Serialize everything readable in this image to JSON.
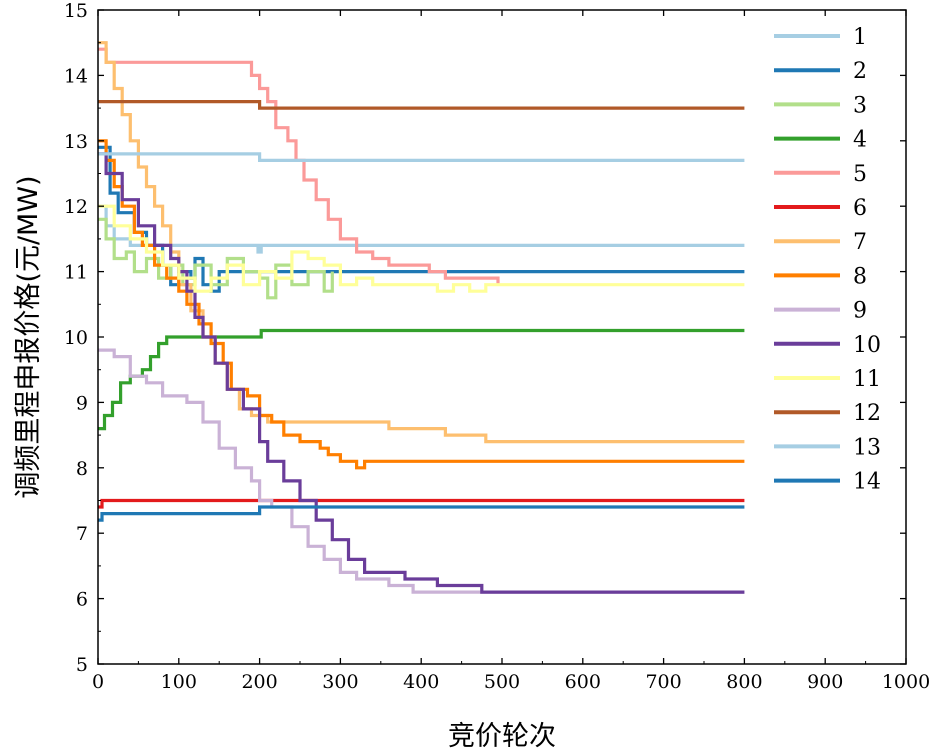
{
  "chart_data": {
    "type": "line",
    "title": "",
    "xlabel": "竞价轮次",
    "ylabel": "调频里程申报价格(元/MW)",
    "xlim": [
      0,
      1000
    ],
    "ylim": [
      5,
      15
    ],
    "xticks": [
      0,
      100,
      200,
      300,
      400,
      500,
      600,
      700,
      800,
      900,
      1000
    ],
    "yticks": [
      5,
      6,
      7,
      8,
      9,
      10,
      11,
      12,
      13,
      14,
      15
    ],
    "legend_position": "top-right",
    "grid": false,
    "series": [
      {
        "name": "1",
        "color": "#a6cee3",
        "points": [
          [
            0,
            12.0
          ],
          [
            10,
            11.7
          ],
          [
            20,
            11.5
          ],
          [
            40,
            11.4
          ],
          [
            100,
            11.4
          ],
          [
            195,
            11.4
          ],
          [
            198,
            11.3
          ],
          [
            202,
            11.4
          ],
          [
            800,
            11.4
          ]
        ]
      },
      {
        "name": "2",
        "color": "#1f78b4",
        "points": [
          [
            0,
            12.9
          ],
          [
            15,
            12.2
          ],
          [
            25,
            11.9
          ],
          [
            45,
            11.6
          ],
          [
            60,
            11.4
          ],
          [
            80,
            11.1
          ],
          [
            90,
            10.8
          ],
          [
            100,
            11.0
          ],
          [
            115,
            10.9
          ],
          [
            120,
            11.2
          ],
          [
            130,
            10.8
          ],
          [
            140,
            10.7
          ],
          [
            150,
            11.0
          ],
          [
            200,
            11.0
          ],
          [
            205,
            11.0
          ],
          [
            800,
            11.0
          ]
        ]
      },
      {
        "name": "3",
        "color": "#b2df8a",
        "points": [
          [
            0,
            11.8
          ],
          [
            10,
            11.5
          ],
          [
            20,
            11.2
          ],
          [
            35,
            11.3
          ],
          [
            45,
            11.0
          ],
          [
            60,
            11.2
          ],
          [
            75,
            10.9
          ],
          [
            90,
            11.1
          ],
          [
            105,
            10.8
          ],
          [
            120,
            11.1
          ],
          [
            140,
            10.8
          ],
          [
            160,
            11.2
          ],
          [
            180,
            11.0
          ],
          [
            200,
            10.9
          ],
          [
            210,
            10.6
          ],
          [
            220,
            11.1
          ],
          [
            240,
            10.8
          ],
          [
            260,
            11.0
          ],
          [
            280,
            10.7
          ],
          [
            290,
            11.0
          ]
        ]
      },
      {
        "name": "4",
        "color": "#33a02c",
        "points": [
          [
            0,
            8.6
          ],
          [
            8,
            8.8
          ],
          [
            18,
            9.0
          ],
          [
            28,
            9.3
          ],
          [
            40,
            9.4
          ],
          [
            55,
            9.5
          ],
          [
            65,
            9.7
          ],
          [
            75,
            9.9
          ],
          [
            85,
            10.0
          ],
          [
            120,
            10.0
          ],
          [
            198,
            10.0
          ],
          [
            202,
            10.1
          ],
          [
            800,
            10.1
          ]
        ]
      },
      {
        "name": "5",
        "color": "#fb9a99",
        "points": [
          [
            0,
            14.4
          ],
          [
            10,
            14.2
          ],
          [
            60,
            14.2
          ],
          [
            120,
            14.2
          ],
          [
            180,
            14.2
          ],
          [
            190,
            14.0
          ],
          [
            200,
            13.8
          ],
          [
            210,
            13.6
          ],
          [
            220,
            13.2
          ],
          [
            235,
            13.0
          ],
          [
            245,
            12.7
          ],
          [
            255,
            12.4
          ],
          [
            270,
            12.1
          ],
          [
            285,
            11.8
          ],
          [
            300,
            11.5
          ],
          [
            320,
            11.3
          ],
          [
            340,
            11.2
          ],
          [
            360,
            11.1
          ],
          [
            390,
            11.1
          ],
          [
            410,
            11.0
          ],
          [
            430,
            10.9
          ],
          [
            460,
            10.9
          ],
          [
            495,
            10.8
          ]
        ]
      },
      {
        "name": "6",
        "color": "#e31a1c",
        "points": [
          [
            0,
            7.4
          ],
          [
            5,
            7.5
          ],
          [
            200,
            7.5
          ],
          [
            800,
            7.5
          ]
        ]
      },
      {
        "name": "7",
        "color": "#fdbf6f",
        "points": [
          [
            0,
            14.5
          ],
          [
            10,
            14.2
          ],
          [
            20,
            13.8
          ],
          [
            30,
            13.4
          ],
          [
            40,
            13.0
          ],
          [
            50,
            12.6
          ],
          [
            60,
            12.3
          ],
          [
            70,
            12.0
          ],
          [
            80,
            11.7
          ],
          [
            90,
            11.3
          ],
          [
            100,
            10.8
          ],
          [
            115,
            10.4
          ],
          [
            130,
            10.0
          ],
          [
            145,
            9.6
          ],
          [
            160,
            9.2
          ],
          [
            175,
            8.9
          ],
          [
            190,
            8.8
          ],
          [
            210,
            8.7
          ],
          [
            250,
            8.7
          ],
          [
            300,
            8.7
          ],
          [
            350,
            8.7
          ],
          [
            360,
            8.6
          ],
          [
            400,
            8.6
          ],
          [
            420,
            8.6
          ],
          [
            430,
            8.5
          ],
          [
            470,
            8.5
          ],
          [
            480,
            8.4
          ],
          [
            800,
            8.4
          ]
        ]
      },
      {
        "name": "8",
        "color": "#ff7f00",
        "points": [
          [
            0,
            13.0
          ],
          [
            10,
            12.7
          ],
          [
            20,
            12.3
          ],
          [
            30,
            12.0
          ],
          [
            45,
            11.6
          ],
          [
            55,
            11.4
          ],
          [
            70,
            11.1
          ],
          [
            85,
            10.9
          ],
          [
            100,
            10.7
          ],
          [
            110,
            10.5
          ],
          [
            125,
            10.2
          ],
          [
            140,
            9.9
          ],
          [
            155,
            9.6
          ],
          [
            165,
            9.2
          ],
          [
            185,
            9.1
          ],
          [
            200,
            8.8
          ],
          [
            215,
            8.7
          ],
          [
            230,
            8.5
          ],
          [
            250,
            8.4
          ],
          [
            260,
            8.4
          ],
          [
            275,
            8.3
          ],
          [
            285,
            8.2
          ],
          [
            300,
            8.1
          ],
          [
            320,
            8.0
          ],
          [
            330,
            8.1
          ],
          [
            800,
            8.1
          ]
        ]
      },
      {
        "name": "9",
        "color": "#cab2d6",
        "points": [
          [
            0,
            9.8
          ],
          [
            20,
            9.7
          ],
          [
            40,
            9.4
          ],
          [
            60,
            9.3
          ],
          [
            80,
            9.1
          ],
          [
            110,
            9.0
          ],
          [
            130,
            8.7
          ],
          [
            150,
            8.3
          ],
          [
            170,
            8.0
          ],
          [
            190,
            7.8
          ],
          [
            200,
            7.5
          ],
          [
            215,
            7.4
          ],
          [
            240,
            7.1
          ],
          [
            260,
            6.8
          ],
          [
            280,
            6.6
          ],
          [
            300,
            6.4
          ],
          [
            320,
            6.3
          ],
          [
            360,
            6.2
          ],
          [
            390,
            6.1
          ],
          [
            440,
            6.1
          ],
          [
            460,
            6.1
          ],
          [
            800,
            6.1
          ]
        ]
      },
      {
        "name": "10",
        "color": "#6a3d9a",
        "points": [
          [
            0,
            12.8
          ],
          [
            10,
            12.5
          ],
          [
            30,
            12.1
          ],
          [
            50,
            11.7
          ],
          [
            70,
            11.4
          ],
          [
            90,
            11.2
          ],
          [
            100,
            11.0
          ],
          [
            110,
            10.7
          ],
          [
            120,
            10.3
          ],
          [
            130,
            10.0
          ],
          [
            145,
            9.6
          ],
          [
            160,
            9.2
          ],
          [
            180,
            8.9
          ],
          [
            200,
            8.4
          ],
          [
            210,
            8.1
          ],
          [
            230,
            7.8
          ],
          [
            250,
            7.5
          ],
          [
            270,
            7.2
          ],
          [
            290,
            6.9
          ],
          [
            310,
            6.6
          ],
          [
            330,
            6.4
          ],
          [
            350,
            6.4
          ],
          [
            380,
            6.3
          ],
          [
            400,
            6.3
          ],
          [
            420,
            6.2
          ],
          [
            440,
            6.2
          ],
          [
            470,
            6.2
          ],
          [
            475,
            6.1
          ],
          [
            800,
            6.1
          ]
        ]
      },
      {
        "name": "11",
        "color": "#ffff99",
        "points": [
          [
            0,
            12.0
          ],
          [
            20,
            11.7
          ],
          [
            40,
            11.5
          ],
          [
            60,
            11.3
          ],
          [
            80,
            11.1
          ],
          [
            100,
            10.9
          ],
          [
            120,
            10.7
          ],
          [
            140,
            10.9
          ],
          [
            160,
            11.1
          ],
          [
            180,
            10.8
          ],
          [
            200,
            11.0
          ],
          [
            220,
            10.9
          ],
          [
            240,
            11.3
          ],
          [
            260,
            11.2
          ],
          [
            280,
            11.1
          ],
          [
            300,
            10.8
          ],
          [
            320,
            10.9
          ],
          [
            340,
            10.8
          ],
          [
            360,
            10.8
          ],
          [
            380,
            10.8
          ],
          [
            400,
            10.8
          ],
          [
            420,
            10.7
          ],
          [
            440,
            10.8
          ],
          [
            460,
            10.7
          ],
          [
            480,
            10.8
          ],
          [
            500,
            10.8
          ],
          [
            800,
            10.8
          ]
        ]
      },
      {
        "name": "12",
        "color": "#b15928",
        "points": [
          [
            0,
            13.6
          ],
          [
            100,
            13.6
          ],
          [
            195,
            13.6
          ],
          [
            200,
            13.5
          ],
          [
            800,
            13.5
          ]
        ]
      },
      {
        "name": "13",
        "color": "#a6cee3",
        "points": [
          [
            0,
            12.8
          ],
          [
            100,
            12.8
          ],
          [
            195,
            12.8
          ],
          [
            200,
            12.7
          ],
          [
            800,
            12.7
          ]
        ]
      },
      {
        "name": "14",
        "color": "#1f78b4",
        "points": [
          [
            0,
            7.2
          ],
          [
            5,
            7.3
          ],
          [
            100,
            7.3
          ],
          [
            195,
            7.3
          ],
          [
            200,
            7.4
          ],
          [
            800,
            7.4
          ]
        ]
      }
    ]
  }
}
